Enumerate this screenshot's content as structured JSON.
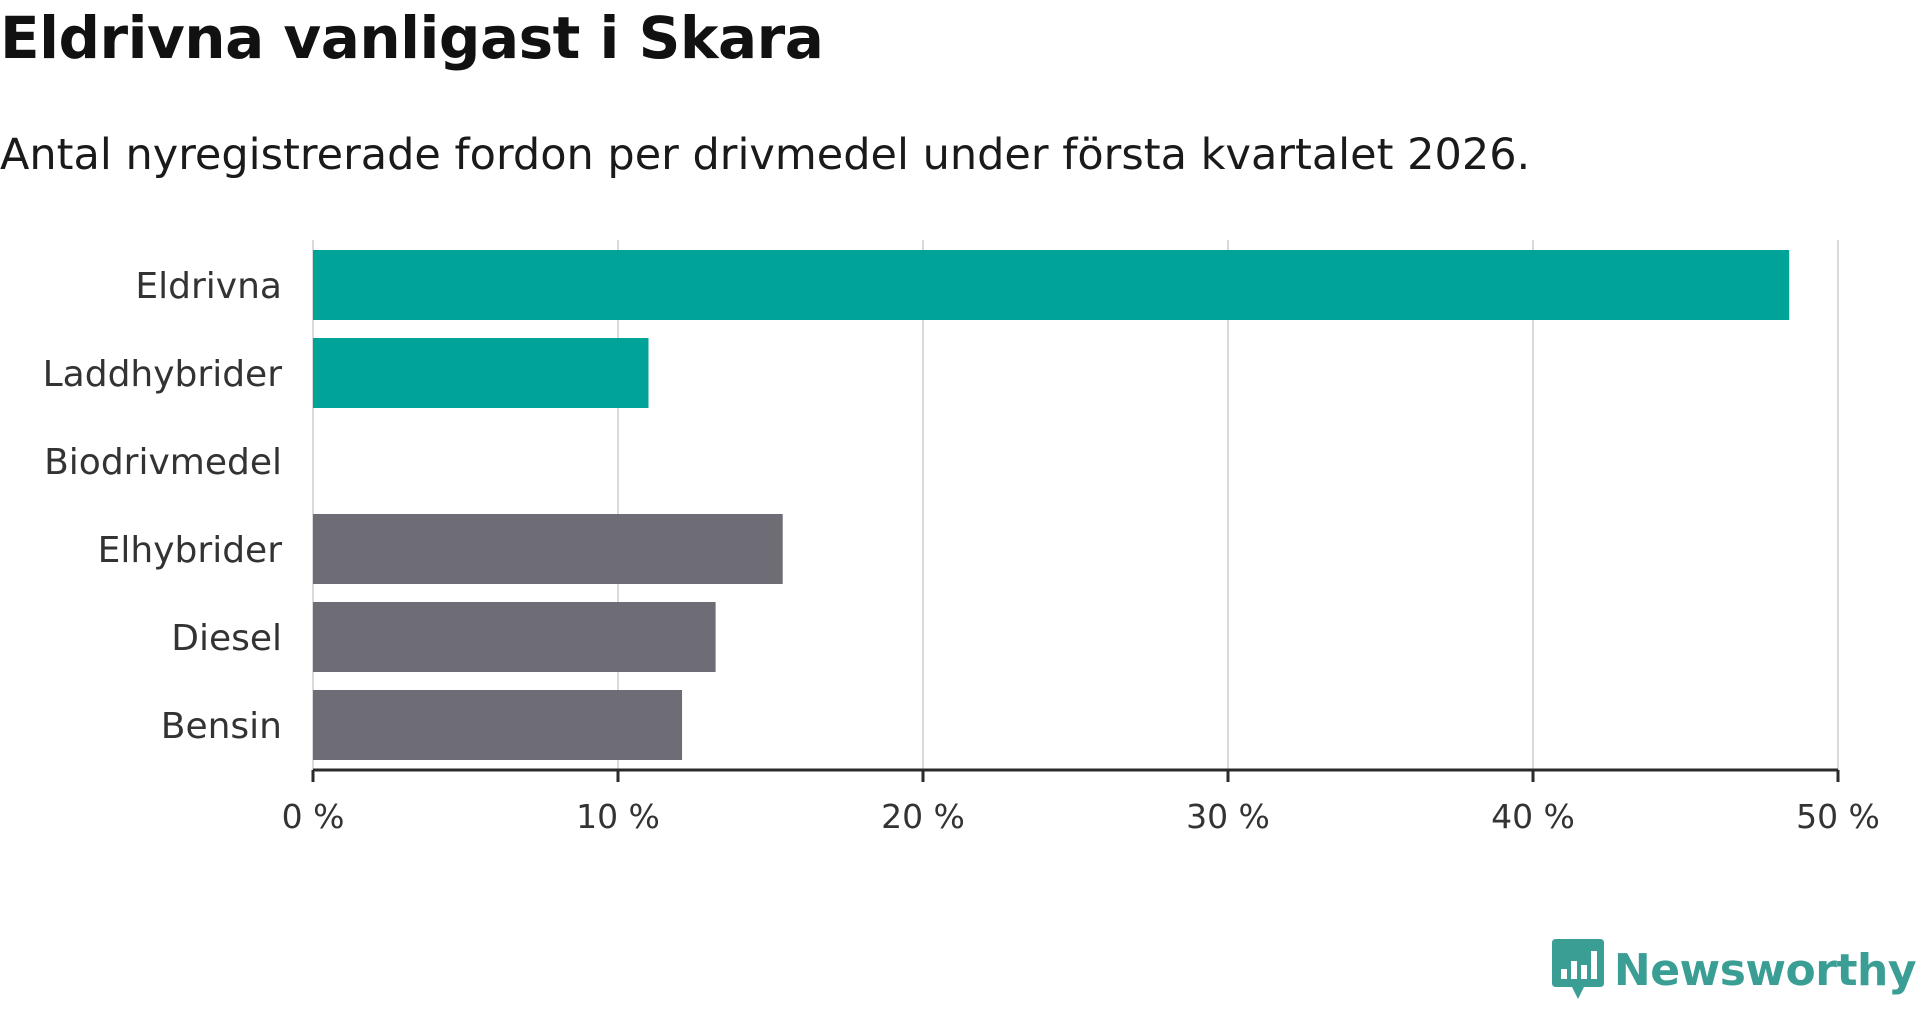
{
  "chart_data": {
    "type": "bar",
    "orientation": "horizontal",
    "title": "Eldrivna vanligast i Skara",
    "subtitle": "Antal nyregistrerade fordon per drivmedel under första kvartalet 2026.",
    "categories": [
      "Eldrivna",
      "Laddhybrider",
      "Biodrivmedel",
      "Elhybrider",
      "Diesel",
      "Bensin"
    ],
    "values": [
      48.4,
      11.0,
      0,
      15.4,
      13.2,
      12.1
    ],
    "colors": [
      "#00a398",
      "#00a398",
      "#00a398",
      "#6e6d75",
      "#6e6d75",
      "#6e6d75"
    ],
    "xlim": [
      0,
      50
    ],
    "xticks": [
      0,
      10,
      20,
      30,
      40,
      50
    ],
    "xtick_labels": [
      "0 %",
      "10 %",
      "20 %",
      "30 %",
      "40 %",
      "50 %"
    ],
    "xlabel": "",
    "ylabel": "",
    "grid": true
  },
  "brand": {
    "name": "Newsworthy",
    "color": "#3a9e95"
  }
}
